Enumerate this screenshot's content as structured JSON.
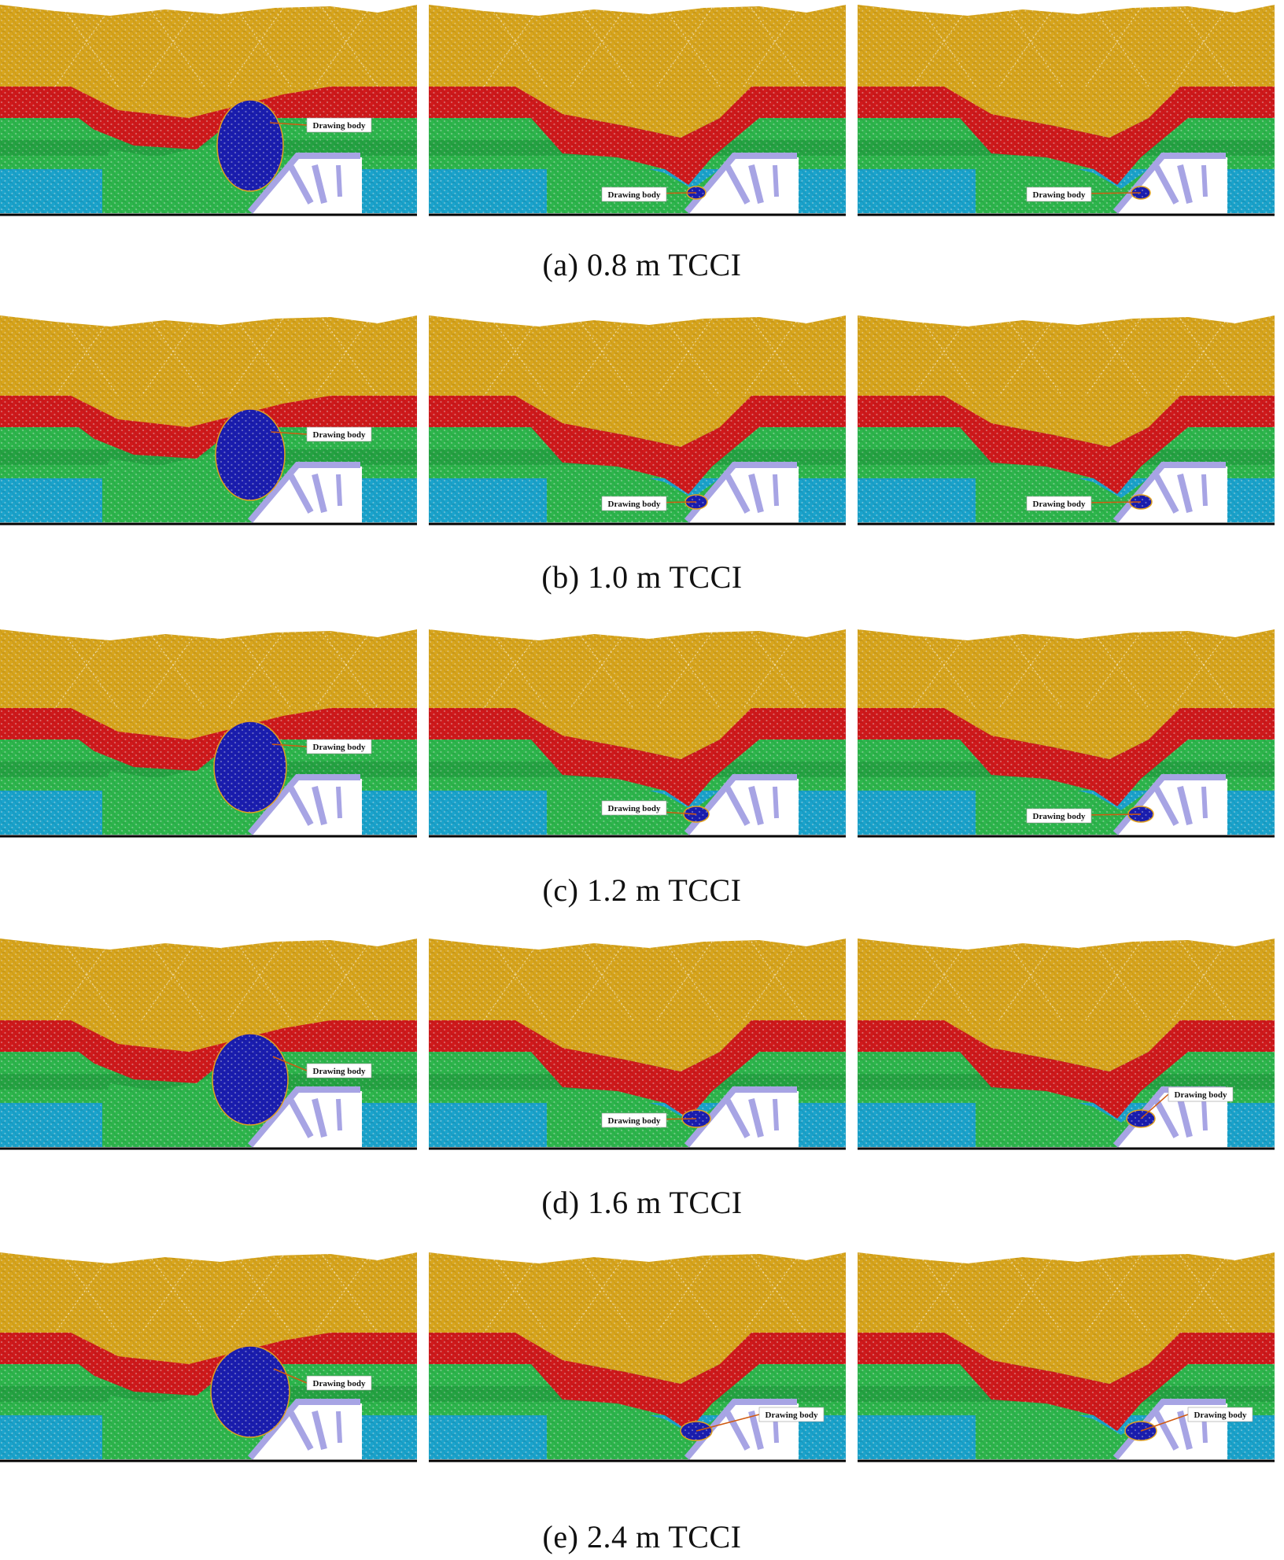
{
  "figure": {
    "rows": [
      {
        "caption": "(a) 0.8 m TCCI",
        "panels": [
          {
            "label": "Drawing body",
            "stage": "large"
          },
          {
            "label": "Drawing body",
            "stage": "small"
          },
          {
            "label": "Drawing body",
            "stage": "small"
          }
        ]
      },
      {
        "caption": "(b) 1.0 m TCCI",
        "panels": [
          {
            "label": "Drawing body",
            "stage": "large"
          },
          {
            "label": "Drawing body",
            "stage": "small"
          },
          {
            "label": "Drawing body",
            "stage": "small"
          }
        ]
      },
      {
        "caption": "(c) 1.2 m TCCI",
        "panels": [
          {
            "label": "Drawing body",
            "stage": "large"
          },
          {
            "label": "Drawing body",
            "stage": "small"
          },
          {
            "label": "Drawing body",
            "stage": "small"
          }
        ]
      },
      {
        "caption": "(d) 1.6 m TCCI",
        "panels": [
          {
            "label": "Drawing body",
            "stage": "large"
          },
          {
            "label": "Drawing body",
            "stage": "small"
          },
          {
            "label": "Drawing body",
            "stage": "small"
          }
        ]
      },
      {
        "caption": "(e) 2.4 m TCCI",
        "panels": [
          {
            "label": "Drawing body",
            "stage": "large"
          },
          {
            "label": "Drawing body",
            "stage": "small"
          },
          {
            "label": "Drawing body",
            "stage": "small"
          }
        ]
      }
    ]
  },
  "colors": {
    "top_coal": "#D8A51C",
    "red_layer": "#D0191B",
    "green_layer": "#2DB64C",
    "blue_layer": "#1AA3CC",
    "drawing_body": "#1A1DB0",
    "support": "#A7A4E4",
    "label_bg": "#ffffff",
    "leader": "#D05A10"
  }
}
